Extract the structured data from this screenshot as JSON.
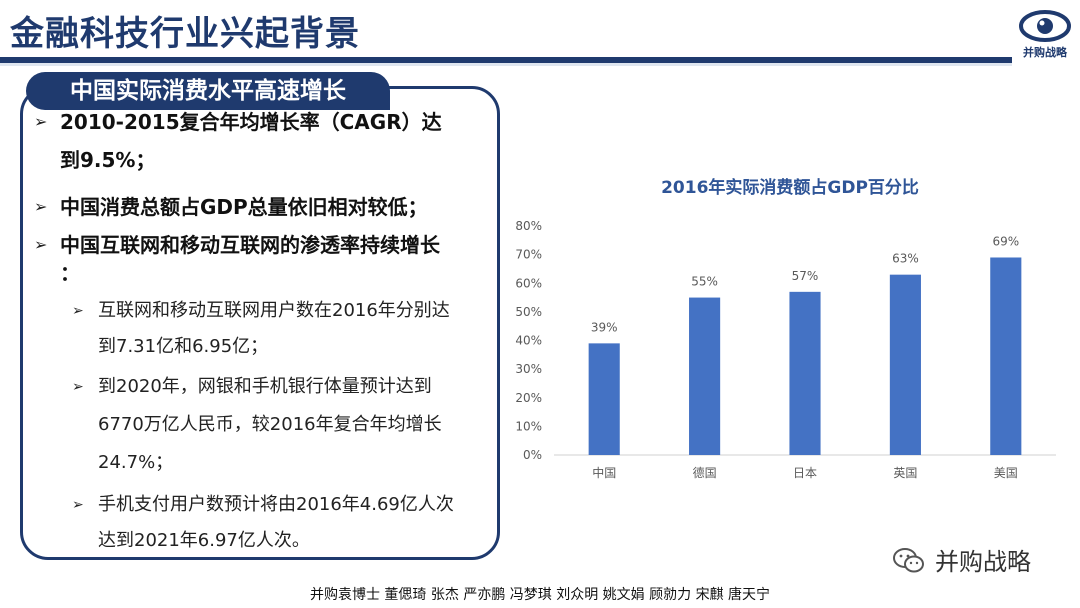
{
  "title": "金融科技行业兴起背景",
  "logo_text": "并购战略",
  "panel": {
    "tab": "中国实际消费水平高速增长",
    "bullets": [
      {
        "line1": "2010-2015复合年均增长率（CAGR）达",
        "line2": "到9.5%；"
      },
      {
        "line1": "中国消费总额占GDP总量依旧相对较低；"
      },
      {
        "line1": "中国互联网和移动互联网的渗透率持续增长",
        "line2": "："
      }
    ],
    "sub_bullets": [
      {
        "line1": "互联网和移动互联网用户数在2016年分别达",
        "line2": "到7.31亿和6.95亿；"
      },
      {
        "line1": "到2020年，网银和手机银行体量预计达到",
        "line2": "6770万亿人民币，较2016年复合年均增长",
        "line3": "24.7%；"
      },
      {
        "line1": "手机支付用户数预计将由2016年4.69亿人次",
        "line2": "达到2021年6.97亿人次。"
      }
    ]
  },
  "chart_data": {
    "type": "bar",
    "title": "2016年实际消费额占GDP百分比",
    "categories": [
      "中国",
      "德国",
      "日本",
      "英国",
      "美国"
    ],
    "values": [
      39,
      55,
      57,
      63,
      69
    ],
    "data_labels": [
      "39%",
      "55%",
      "57%",
      "63%",
      "69%"
    ],
    "ylim": [
      0,
      80
    ],
    "yticks": [
      "0%",
      "10%",
      "20%",
      "30%",
      "40%",
      "50%",
      "60%",
      "70%",
      "80%"
    ],
    "bar_color": "#4472c4",
    "grid": false
  },
  "brand": "并购战略",
  "footer": "并购袁博士 董偲琦 张杰 严亦鹏 冯梦琪 刘众明 姚文娟 顾勍力 宋麒 唐天宁",
  "colors": {
    "primary": "#1f3a6e",
    "accent": "#4472c4"
  }
}
